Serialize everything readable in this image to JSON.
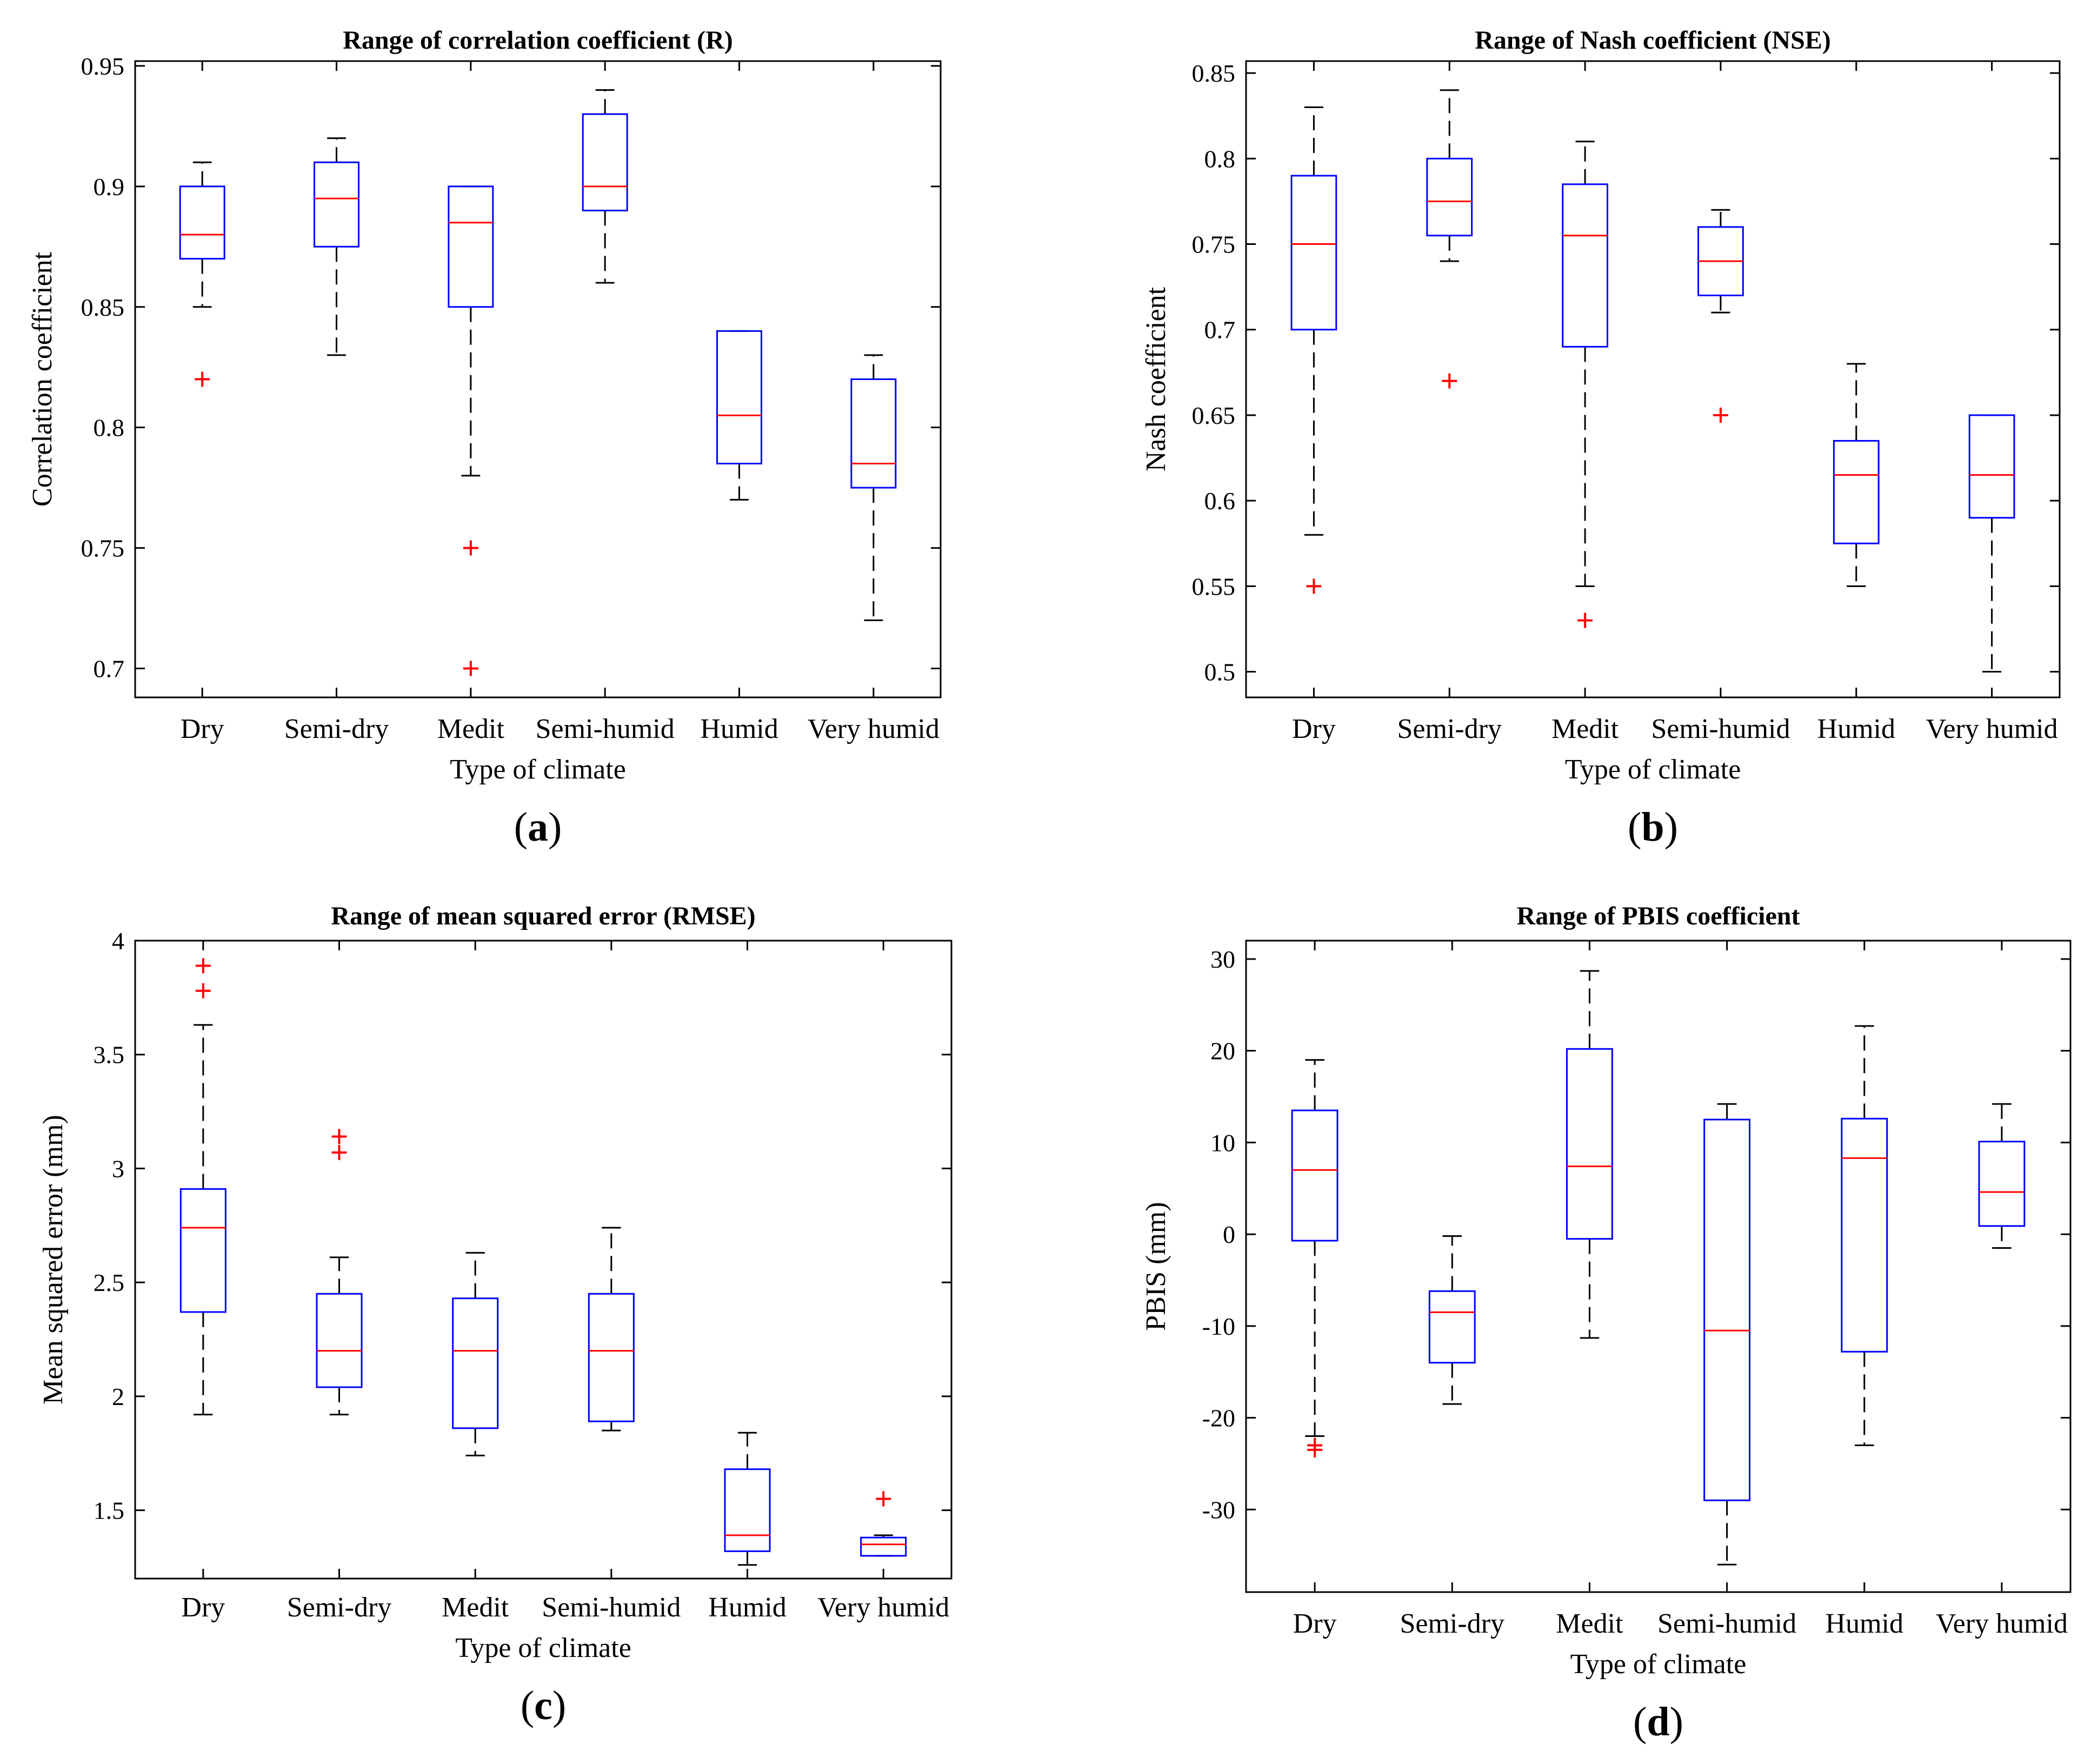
{
  "colors": {
    "box": "#0000ff",
    "median": "#ff0000",
    "outlier": "#ff0000",
    "whisker": "#000000",
    "axes": "#000000"
  },
  "chart_data": [
    {
      "id": "a",
      "type": "box",
      "panel_label": "a",
      "title": "Range of correlation coefficient (R)",
      "xlabel": "Type of climate",
      "ylabel": "Correlation coefficient",
      "categories": [
        "Dry",
        "Semi-dry",
        "Medit",
        "Semi-humid",
        "Humid",
        "Very humid"
      ],
      "ylim": [
        0.688,
        0.952
      ],
      "yticks": [
        0.7,
        0.75,
        0.8,
        0.85,
        0.9,
        0.95
      ],
      "ytick_labels": [
        "0.7",
        "0.75",
        "0.8",
        "0.85",
        "0.9",
        "0.95"
      ],
      "boxes": [
        {
          "whisker_low": 0.85,
          "q1": 0.87,
          "median": 0.88,
          "q3": 0.9,
          "whisker_high": 0.91,
          "outliers": [
            0.82
          ]
        },
        {
          "whisker_low": 0.83,
          "q1": 0.875,
          "median": 0.895,
          "q3": 0.91,
          "whisker_high": 0.92,
          "outliers": []
        },
        {
          "whisker_low": 0.78,
          "q1": 0.85,
          "median": 0.885,
          "q3": 0.9,
          "whisker_high": 0.9,
          "outliers": [
            0.75,
            0.7
          ]
        },
        {
          "whisker_low": 0.86,
          "q1": 0.89,
          "median": 0.9,
          "q3": 0.93,
          "whisker_high": 0.94,
          "outliers": []
        },
        {
          "whisker_low": 0.77,
          "q1": 0.785,
          "median": 0.805,
          "q3": 0.84,
          "whisker_high": 0.84,
          "outliers": []
        },
        {
          "whisker_low": 0.72,
          "q1": 0.775,
          "median": 0.785,
          "q3": 0.82,
          "whisker_high": 0.83,
          "outliers": []
        }
      ]
    },
    {
      "id": "b",
      "type": "box",
      "panel_label": "b",
      "title": "Range of Nash coefficient (NSE)",
      "xlabel": "Type of climate",
      "ylabel": "Nash coefficient",
      "categories": [
        "Dry",
        "Semi-dry",
        "Medit",
        "Semi-humid",
        "Humid",
        "Very humid"
      ],
      "ylim": [
        0.485,
        0.857
      ],
      "yticks": [
        0.5,
        0.55,
        0.6,
        0.65,
        0.7,
        0.75,
        0.8,
        0.85
      ],
      "ytick_labels": [
        "0.5",
        "0.55",
        "0.6",
        "0.65",
        "0.7",
        "0.75",
        "0.8",
        "0.85"
      ],
      "boxes": [
        {
          "whisker_low": 0.58,
          "q1": 0.7,
          "median": 0.75,
          "q3": 0.79,
          "whisker_high": 0.83,
          "outliers": [
            0.55
          ]
        },
        {
          "whisker_low": 0.74,
          "q1": 0.755,
          "median": 0.775,
          "q3": 0.8,
          "whisker_high": 0.84,
          "outliers": [
            0.67
          ]
        },
        {
          "whisker_low": 0.55,
          "q1": 0.69,
          "median": 0.755,
          "q3": 0.785,
          "whisker_high": 0.81,
          "outliers": [
            0.53
          ]
        },
        {
          "whisker_low": 0.71,
          "q1": 0.72,
          "median": 0.74,
          "q3": 0.76,
          "whisker_high": 0.77,
          "outliers": [
            0.65
          ]
        },
        {
          "whisker_low": 0.55,
          "q1": 0.575,
          "median": 0.615,
          "q3": 0.635,
          "whisker_high": 0.68,
          "outliers": []
        },
        {
          "whisker_low": 0.5,
          "q1": 0.59,
          "median": 0.615,
          "q3": 0.65,
          "whisker_high": 0.65,
          "outliers": []
        }
      ]
    },
    {
      "id": "c",
      "type": "box",
      "panel_label": "c",
      "title": "Range of mean squared error (RMSE)",
      "xlabel": "Type of climate",
      "ylabel": "Mean squared error (mm)",
      "categories": [
        "Dry",
        "Semi-dry",
        "Medit",
        "Semi-humid",
        "Humid",
        "Very humid"
      ],
      "ylim": [
        1.2,
        4.0
      ],
      "yticks": [
        1.5,
        2,
        2.5,
        3,
        3.5,
        4
      ],
      "ytick_labels": [
        "1.5",
        "2",
        "2.5",
        "3",
        "3.5",
        "4"
      ],
      "boxes": [
        {
          "whisker_low": 1.92,
          "q1": 2.37,
          "median": 2.74,
          "q3": 2.91,
          "whisker_high": 3.63,
          "outliers": [
            3.89,
            3.78
          ]
        },
        {
          "whisker_low": 1.92,
          "q1": 2.04,
          "median": 2.2,
          "q3": 2.45,
          "whisker_high": 2.61,
          "outliers": [
            3.14,
            3.07
          ]
        },
        {
          "whisker_low": 1.74,
          "q1": 1.86,
          "median": 2.2,
          "q3": 2.43,
          "whisker_high": 2.63,
          "outliers": []
        },
        {
          "whisker_low": 1.85,
          "q1": 1.89,
          "median": 2.2,
          "q3": 2.45,
          "whisker_high": 2.74,
          "outliers": []
        },
        {
          "whisker_low": 1.26,
          "q1": 1.32,
          "median": 1.39,
          "q3": 1.68,
          "whisker_high": 1.84,
          "outliers": []
        },
        {
          "whisker_low": 1.3,
          "q1": 1.3,
          "median": 1.35,
          "q3": 1.38,
          "whisker_high": 1.39,
          "outliers": [
            1.55
          ]
        }
      ]
    },
    {
      "id": "d",
      "type": "box",
      "panel_label": "d",
      "title": "Range of PBIS coefficient",
      "xlabel": "Type of climate",
      "ylabel": "PBIS (mm)",
      "categories": [
        "Dry",
        "Semi-dry",
        "Medit",
        "Semi-humid",
        "Humid",
        "Very humid"
      ],
      "ylim": [
        -39,
        32
      ],
      "yticks": [
        -30,
        -20,
        -10,
        0,
        10,
        20,
        30
      ],
      "ytick_labels": [
        "-30",
        "-20",
        "-10",
        "0",
        "10",
        "20",
        "30"
      ],
      "boxes": [
        {
          "whisker_low": -22,
          "q1": -0.7,
          "median": 7,
          "q3": 13.5,
          "whisker_high": 19,
          "outliers": [
            -23,
            -23.5
          ]
        },
        {
          "whisker_low": -18.5,
          "q1": -14,
          "median": -8.5,
          "q3": -6.2,
          "whisker_high": -0.2,
          "outliers": []
        },
        {
          "whisker_low": -11.3,
          "q1": -0.5,
          "median": 7.4,
          "q3": 20.2,
          "whisker_high": 28.7,
          "outliers": []
        },
        {
          "whisker_low": -36,
          "q1": -29,
          "median": -10.5,
          "q3": 12.5,
          "whisker_high": 14.2,
          "outliers": []
        },
        {
          "whisker_low": -23,
          "q1": -12.8,
          "median": 8.3,
          "q3": 12.6,
          "whisker_high": 22.7,
          "outliers": []
        },
        {
          "whisker_low": -1.5,
          "q1": 0.9,
          "median": 4.6,
          "q3": 10.1,
          "whisker_high": 14.2,
          "outliers": []
        }
      ]
    }
  ]
}
